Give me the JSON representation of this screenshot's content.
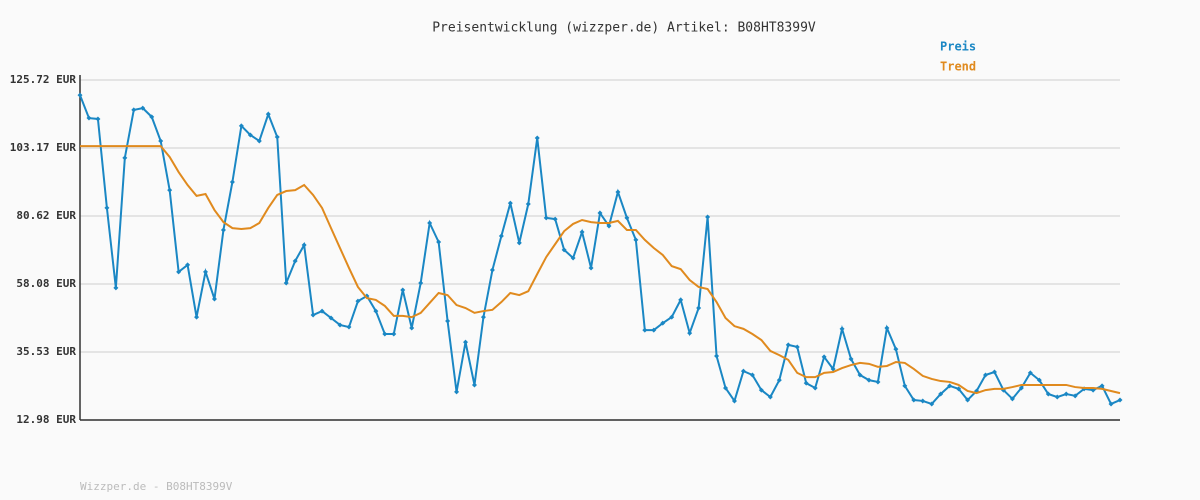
{
  "chart_data": {
    "type": "line",
    "title": "Preisentwicklung (wizzper.de) Artikel: B08HT8399V",
    "footer": "Wizzper.de - B08HT8399V",
    "ylim": [
      12.98,
      125.72
    ],
    "yticks": [
      {
        "value": 12.98,
        "label": "12.98 EUR"
      },
      {
        "value": 35.53,
        "label": "35.53 EUR"
      },
      {
        "value": 58.08,
        "label": "58.08 EUR"
      },
      {
        "value": 80.62,
        "label": "80.62 EUR"
      },
      {
        "value": 103.17,
        "label": "103.17 EUR"
      },
      {
        "value": 125.72,
        "label": "125.72 EUR"
      }
    ],
    "grid": true,
    "series": [
      {
        "name": "Preis",
        "color": "#1a87c4",
        "markers": true,
        "values": [
          120.7,
          113.1,
          112.8,
          83.3,
          56.8,
          99.9,
          115.8,
          116.4,
          113.5,
          105.5,
          89.2,
          62.1,
          64.4,
          47.1,
          62.1,
          53.1,
          76.0,
          91.9,
          110.5,
          107.5,
          105.5,
          114.4,
          106.8,
          58.4,
          65.7,
          71.0,
          47.8,
          49.1,
          46.8,
          44.5,
          43.8,
          52.4,
          54.1,
          49.1,
          41.5,
          41.5,
          56.1,
          43.5,
          58.4,
          78.3,
          72.0,
          45.8,
          22.3,
          38.8,
          24.6,
          47.1,
          62.7,
          74.0,
          84.9,
          71.7,
          84.6,
          106.5,
          80.0,
          79.6,
          69.4,
          66.7,
          75.3,
          63.4,
          81.6,
          77.3,
          88.6,
          80.0,
          72.7,
          42.8,
          42.8,
          45.1,
          47.1,
          52.8,
          41.8,
          50.1,
          80.3,
          34.2,
          23.6,
          19.3,
          29.2,
          27.9,
          22.9,
          20.6,
          26.2,
          37.9,
          37.2,
          25.2,
          23.6,
          33.9,
          29.9,
          43.2,
          33.2,
          27.9,
          26.2,
          25.6,
          43.5,
          36.5,
          24.3,
          19.6,
          19.3,
          18.3,
          21.6,
          24.3,
          23.3,
          19.6,
          22.6,
          27.9,
          28.9,
          22.9,
          20.0,
          23.6,
          28.6,
          26.2,
          21.6,
          20.6,
          21.6,
          21.0,
          23.3,
          22.9,
          24.3,
          18.3,
          19.6
        ]
      },
      {
        "name": "Trend",
        "color": "#e08a1e",
        "markers": false,
        "values": [
          103.8,
          103.8,
          103.8,
          103.8,
          103.8,
          103.8,
          103.8,
          103.8,
          103.8,
          103.8,
          100.2,
          95.2,
          90.9,
          87.3,
          87.9,
          82.6,
          78.6,
          76.6,
          76.3,
          76.6,
          78.3,
          83.3,
          87.6,
          88.9,
          89.2,
          90.9,
          87.6,
          83.3,
          76.6,
          70.0,
          63.4,
          57.1,
          53.4,
          52.8,
          50.8,
          47.5,
          47.5,
          47.1,
          48.5,
          51.8,
          55.1,
          54.4,
          51.1,
          50.1,
          48.5,
          49.1,
          49.5,
          52.1,
          55.1,
          54.4,
          55.7,
          61.4,
          67.0,
          71.3,
          75.6,
          78.0,
          79.3,
          78.6,
          78.3,
          78.3,
          79.0,
          76.0,
          76.0,
          72.7,
          70.0,
          67.7,
          64.0,
          63.0,
          59.4,
          57.1,
          56.4,
          52.1,
          46.8,
          44.1,
          43.2,
          41.5,
          39.5,
          35.9,
          34.5,
          32.9,
          28.6,
          27.2,
          27.2,
          28.6,
          28.9,
          30.2,
          31.2,
          31.9,
          31.6,
          30.6,
          30.9,
          32.2,
          31.9,
          29.9,
          27.6,
          26.6,
          25.9,
          25.6,
          24.6,
          22.6,
          21.9,
          22.9,
          23.3,
          23.3,
          23.9,
          24.6,
          24.6,
          24.6,
          24.6,
          24.6,
          24.6,
          23.9,
          23.6,
          23.6,
          23.3,
          22.6,
          21.9
        ]
      }
    ]
  }
}
